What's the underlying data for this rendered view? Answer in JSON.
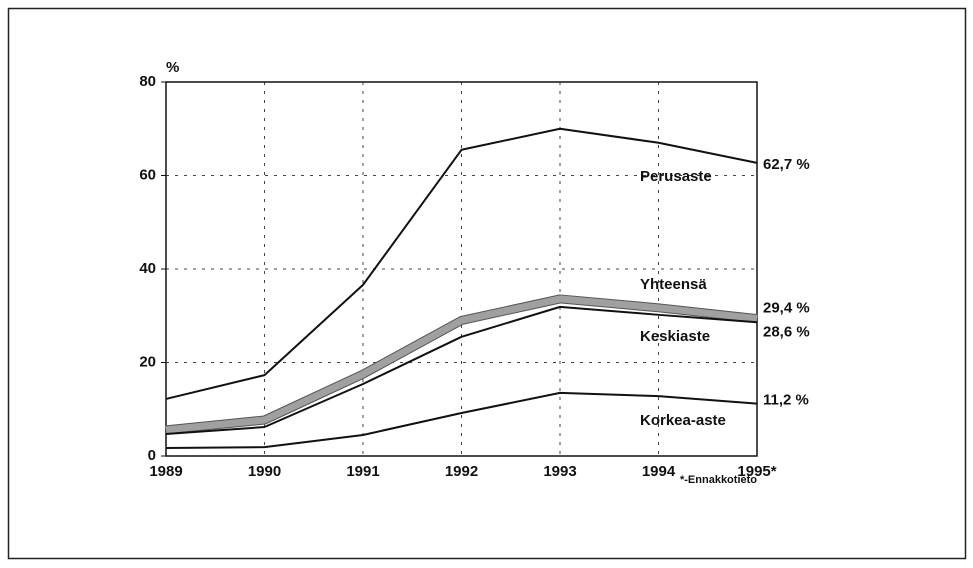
{
  "chart_data": {
    "type": "line",
    "y_label": "%",
    "note": "*-Ennakkotieto",
    "categories": [
      "1989",
      "1990",
      "1991",
      "1992",
      "1993",
      "1994",
      "1995*"
    ],
    "series": [
      {
        "name": "Perusaste",
        "color": "#111111",
        "values": [
          12.2,
          17.3,
          36.6,
          65.5,
          70,
          67,
          62.7
        ],
        "value_labels": [
          null,
          null,
          null,
          null,
          null,
          null,
          "62,7 %"
        ]
      },
      {
        "name": "Yhteensä",
        "color": "#a0a0a0",
        "values": [
          5.6,
          7.7,
          17.5,
          29,
          33.6,
          31.7,
          29.4
        ],
        "value_labels": [
          null,
          null,
          null,
          null,
          null,
          null,
          "29,4 %"
        ]
      },
      {
        "name": "Keskiaste",
        "color": "#111111",
        "values": [
          4.7,
          6.2,
          15.4,
          25.5,
          31.9,
          30.2,
          28.6
        ],
        "value_labels": [
          null,
          null,
          null,
          null,
          null,
          null,
          "28,6 %"
        ]
      },
      {
        "name": "Korkea-aste",
        "color": "#111111",
        "values": [
          1.7,
          1.9,
          4.5,
          9.2,
          13.5,
          12.8,
          11.2
        ],
        "value_labels": [
          null,
          null,
          null,
          null,
          null,
          null,
          "11,2 %"
        ]
      }
    ],
    "ylim": [
      0,
      80
    ],
    "yticks": [
      0,
      20,
      40,
      60,
      80
    ],
    "grid": true
  }
}
